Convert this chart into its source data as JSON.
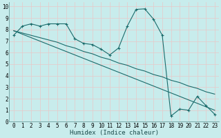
{
  "xlabel": "Humidex (Indice chaleur)",
  "background_color": "#c8ecec",
  "grid_color": "#e8c8c8",
  "line_color": "#1a6b6b",
  "xlim": [
    -0.5,
    23.5
  ],
  "ylim": [
    0,
    10.4
  ],
  "xtick_labels": [
    "0",
    "1",
    "2",
    "3",
    "4",
    "5",
    "6",
    "7",
    "8",
    "9",
    "10",
    "11",
    "12",
    "13",
    "14",
    "15",
    "16",
    "17",
    "18",
    "19",
    "20",
    "21",
    "22",
    "23"
  ],
  "ytick_labels": [
    "0",
    "1",
    "2",
    "3",
    "4",
    "5",
    "6",
    "7",
    "8",
    "9",
    "10"
  ],
  "ytick_vals": [
    0,
    1,
    2,
    3,
    4,
    5,
    6,
    7,
    8,
    9,
    10
  ],
  "xtick_vals": [
    0,
    1,
    2,
    3,
    4,
    5,
    6,
    7,
    8,
    9,
    10,
    11,
    12,
    13,
    14,
    15,
    16,
    17,
    18,
    19,
    20,
    21,
    22,
    23
  ],
  "series1_x": [
    0,
    1,
    2,
    3,
    4,
    5,
    6,
    7,
    8,
    9,
    10,
    11,
    12,
    13,
    14,
    15,
    16,
    17,
    18,
    19,
    20,
    21,
    22,
    23
  ],
  "series1_y": [
    7.5,
    8.3,
    8.5,
    8.3,
    8.5,
    8.5,
    8.5,
    7.2,
    6.8,
    6.7,
    6.3,
    5.8,
    6.4,
    8.3,
    9.75,
    9.8,
    8.9,
    7.5,
    0.5,
    1.1,
    1.0,
    2.2,
    1.4,
    0.65
  ],
  "series2_x": [
    0,
    1,
    2,
    3,
    4,
    5,
    6,
    7,
    8,
    9,
    10,
    11,
    12,
    13,
    14,
    15,
    16,
    17,
    18,
    19,
    20,
    21,
    22,
    23
  ],
  "series2_y": [
    7.9,
    7.7,
    7.5,
    7.3,
    7.1,
    6.9,
    6.6,
    6.4,
    6.1,
    5.9,
    5.6,
    5.4,
    5.1,
    4.9,
    4.6,
    4.4,
    4.1,
    3.9,
    3.6,
    3.4,
    3.1,
    2.9,
    2.6,
    2.4
  ],
  "series3_x": [
    0,
    1,
    2,
    3,
    4,
    5,
    6,
    7,
    8,
    9,
    10,
    11,
    12,
    13,
    14,
    15,
    16,
    17,
    18,
    19,
    20,
    21,
    22,
    23
  ],
  "series3_y": [
    7.9,
    7.6,
    7.3,
    7.0,
    6.7,
    6.4,
    6.1,
    5.8,
    5.5,
    5.2,
    4.9,
    4.6,
    4.3,
    4.0,
    3.7,
    3.4,
    3.1,
    2.8,
    2.5,
    2.2,
    1.9,
    1.6,
    1.3,
    1.0
  ],
  "xlabel_fontsize": 6.5,
  "tick_fontsize": 5.5
}
